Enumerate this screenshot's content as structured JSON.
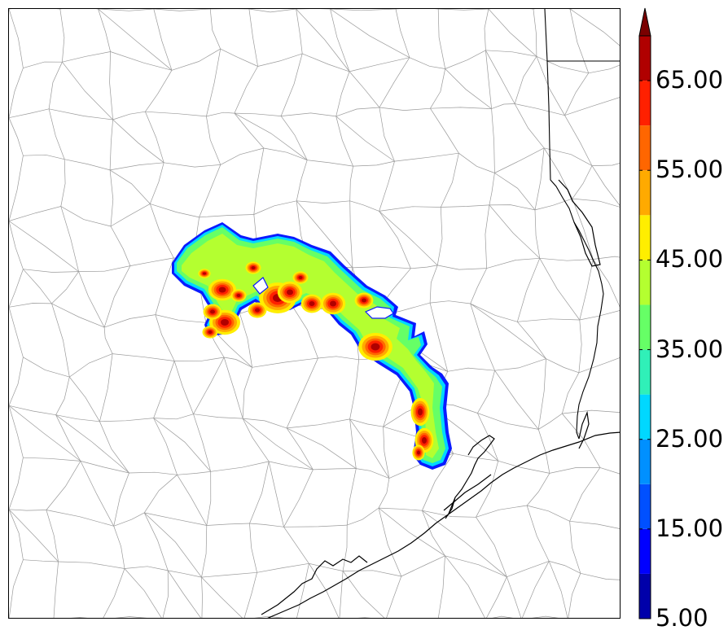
{
  "colorbar": {
    "levels": [
      5,
      10,
      15,
      20,
      25,
      30,
      35,
      40,
      45,
      50,
      55,
      60,
      65,
      70
    ],
    "tick_labels": [
      "5.00",
      "15.00",
      "25.00",
      "35.00",
      "45.00",
      "55.00",
      "65.00"
    ],
    "colors": [
      "#0000aa",
      "#0000ff",
      "#0050ff",
      "#0090ff",
      "#00d8ff",
      "#30f0b8",
      "#66ff66",
      "#b4ff30",
      "#ffee00",
      "#ffaa00",
      "#ff6600",
      "#ff2000",
      "#b00000"
    ],
    "extend": "max",
    "extend_color": "#7a0000"
  },
  "map": {
    "land_color": "#ffffff",
    "county_line_color": "#9a9a9a",
    "state_line_color": "#000000",
    "coastline_color": "#000000"
  }
}
